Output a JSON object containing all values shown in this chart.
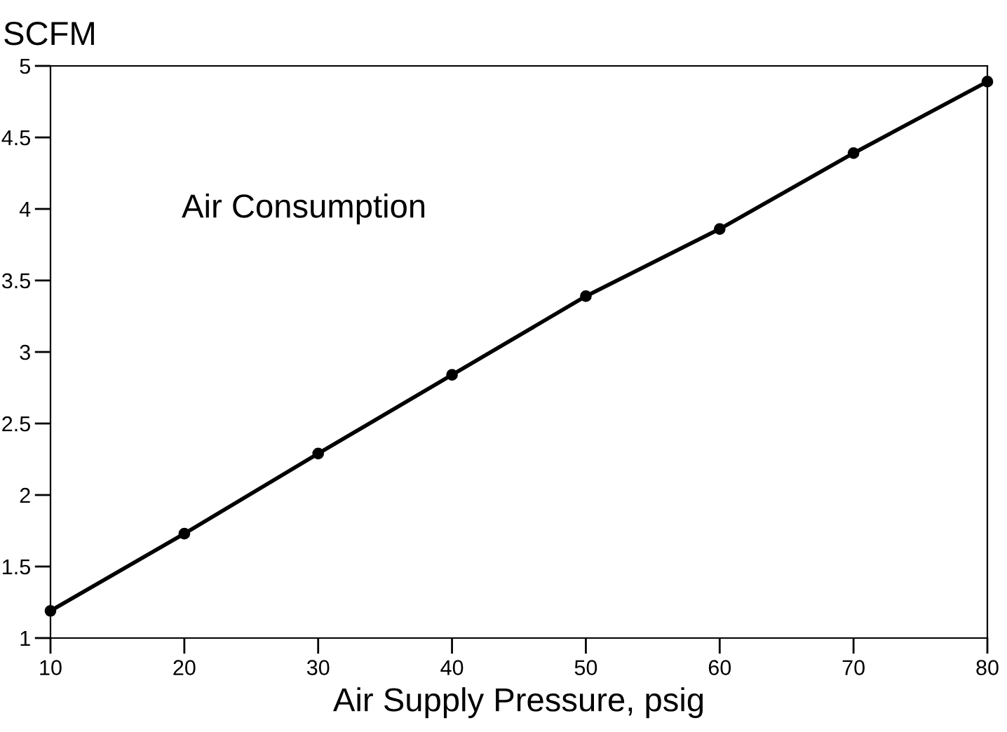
{
  "chart_data": {
    "type": "line",
    "ylabel": "SCFM",
    "xlabel": "Air Supply Pressure, psig",
    "annotations": [
      "Air Consumption"
    ],
    "x": [
      10,
      20,
      30,
      40,
      50,
      60,
      70,
      80
    ],
    "series": [
      {
        "color": "#000000",
        "values": [
          1.19,
          1.73,
          2.29,
          2.84,
          3.39,
          3.86,
          4.39,
          4.89
        ]
      }
    ],
    "xlim": [
      10,
      80
    ],
    "xticks": [
      10,
      20,
      30,
      40,
      50,
      60,
      70,
      80
    ],
    "ylim": [
      1,
      5
    ],
    "yticks": [
      1,
      {
        "value": 1.5,
        "label": "1.5"
      },
      2,
      {
        "value": 2.5,
        "label": "2.5"
      },
      3,
      {
        "value": 3.5,
        "label": "3.5"
      },
      4,
      {
        "value": 4.5,
        "label": "4.5"
      },
      5
    ],
    "grid": false,
    "legend": false,
    "marker": "circle",
    "line_style": "solid"
  }
}
